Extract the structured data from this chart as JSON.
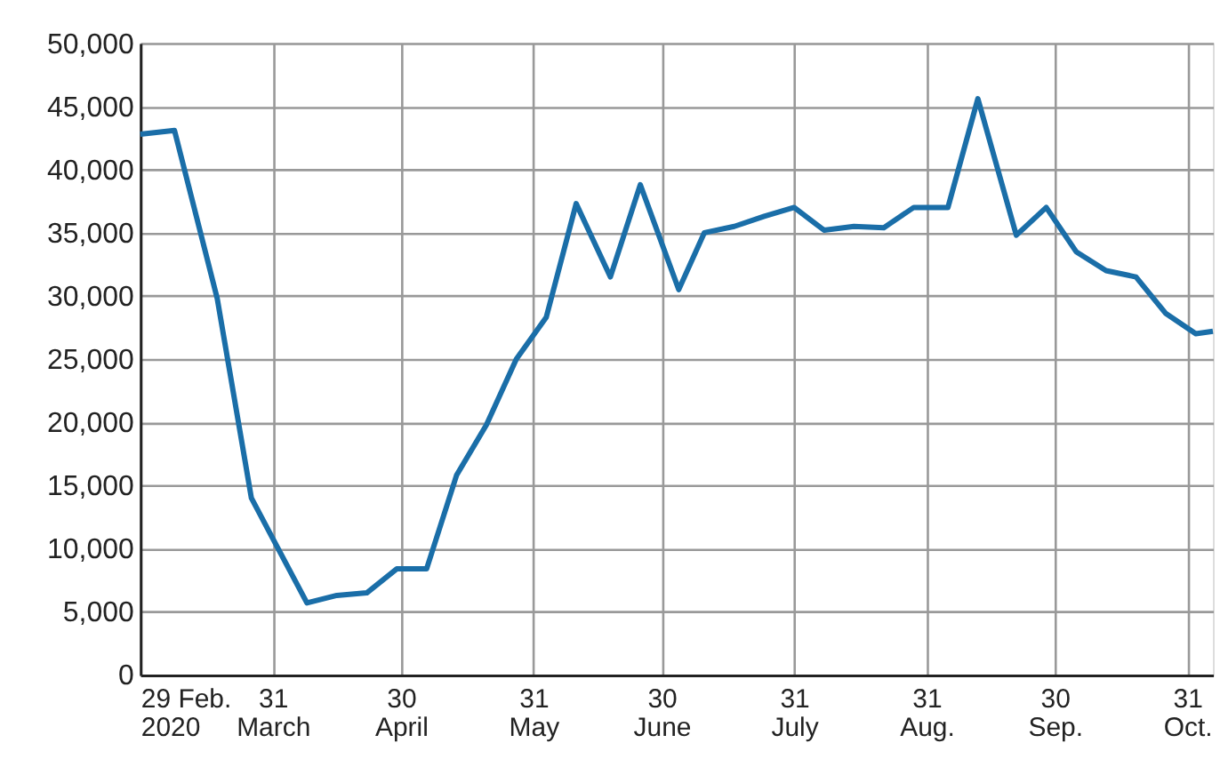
{
  "chart_data": {
    "type": "line",
    "x": [
      "2020-02-29",
      "2020-03-08",
      "2020-03-18",
      "2020-03-26",
      "2020-03-31",
      "2020-04-08",
      "2020-04-15",
      "2020-04-22",
      "2020-04-29",
      "2020-05-06",
      "2020-05-13",
      "2020-05-20",
      "2020-05-27",
      "2020-06-03",
      "2020-06-10",
      "2020-06-18",
      "2020-06-25",
      "2020-07-04",
      "2020-07-10",
      "2020-07-17",
      "2020-07-24",
      "2020-07-31",
      "2020-08-07",
      "2020-08-14",
      "2020-08-21",
      "2020-08-28",
      "2020-09-05",
      "2020-09-12",
      "2020-09-21",
      "2020-09-28",
      "2020-10-05",
      "2020-10-12",
      "2020-10-19",
      "2020-10-26",
      "2020-11-02",
      "2020-11-06"
    ],
    "series": [
      {
        "color": "#1a6ea8",
        "values": [
          42800,
          43100,
          29800,
          14000,
          10800,
          5700,
          6300,
          6500,
          8400,
          8400,
          15800,
          19800,
          25000,
          28300,
          37300,
          31500,
          38800,
          30500,
          35000,
          35500,
          36300,
          37000,
          35200,
          35500,
          35400,
          37000,
          37000,
          45600,
          34800,
          37000,
          33500,
          32000,
          31500,
          28600,
          27000,
          27200
        ]
      }
    ],
    "xlim": [
      "2020-02-29",
      "2020-11-06"
    ],
    "xticks": [
      {
        "value": "2020-02-29",
        "label": "29 Feb.\n2020"
      },
      {
        "value": "2020-03-31",
        "label": "31\nMarch"
      },
      {
        "value": "2020-04-30",
        "label": "30\nApril"
      },
      {
        "value": "2020-05-31",
        "label": "31\nMay"
      },
      {
        "value": "2020-06-30",
        "label": "30\nJune"
      },
      {
        "value": "2020-07-31",
        "label": "31\nJuly"
      },
      {
        "value": "2020-08-31",
        "label": "31\nAug."
      },
      {
        "value": "2020-09-30",
        "label": "30\nSep."
      },
      {
        "value": "2020-10-31",
        "label": "31\nOct."
      }
    ],
    "ylim": [
      0,
      50000
    ],
    "yticks": [
      0,
      {
        "value": 5000,
        "label": "5,000"
      },
      {
        "value": 10000,
        "label": "10,000"
      },
      {
        "value": 15000,
        "label": "15,000"
      },
      {
        "value": 20000,
        "label": "20,000"
      },
      {
        "value": 25000,
        "label": "25,000"
      },
      {
        "value": 30000,
        "label": "30,000"
      },
      {
        "value": 35000,
        "label": "35,000"
      },
      {
        "value": 40000,
        "label": "40,000"
      },
      {
        "value": 45000,
        "label": "45,000"
      },
      {
        "value": 50000,
        "label": "50,000"
      }
    ],
    "grid": true,
    "legend": false,
    "marker": "none",
    "line_style": "solid"
  }
}
